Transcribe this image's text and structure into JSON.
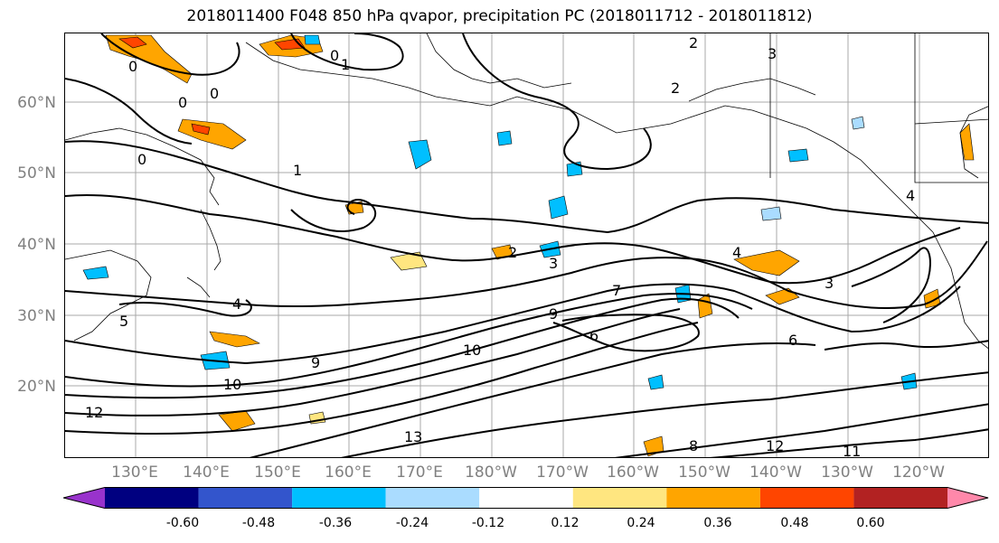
{
  "title": "2018011400 F048 850 hPa qvapor, precipitation PC (2018011712 - 2018011812)",
  "lat_labels": [
    "60°N",
    "50°N",
    "40°N",
    "30°N",
    "20°N"
  ],
  "lon_labels": [
    "130°E",
    "140°E",
    "150°E",
    "160°E",
    "170°E",
    "180°W",
    "170°W",
    "160°W",
    "150°W",
    "140°W",
    "130°W",
    "120°W"
  ],
  "contour_labels": [
    "0",
    "0",
    "0",
    "0",
    "0",
    "1",
    "1",
    "2",
    "2",
    "2",
    "3",
    "3",
    "3",
    "4",
    "4",
    "4",
    "5",
    "6",
    "6",
    "7",
    "8",
    "9",
    "9",
    "10",
    "10",
    "11",
    "12",
    "12",
    "13"
  ],
  "colorbar": {
    "colors": [
      "#9933cc",
      "#000080",
      "#3355cc",
      "#00bfff",
      "#aadcff",
      "#ffffff",
      "#ffe680",
      "#ffa500",
      "#ff4500",
      "#b22222",
      "#ff88aa"
    ],
    "ticks": [
      "-0.60",
      "-0.48",
      "-0.36",
      "-0.24",
      "-0.12",
      "0.12",
      "0.24",
      "0.36",
      "0.48",
      "0.60"
    ]
  }
}
